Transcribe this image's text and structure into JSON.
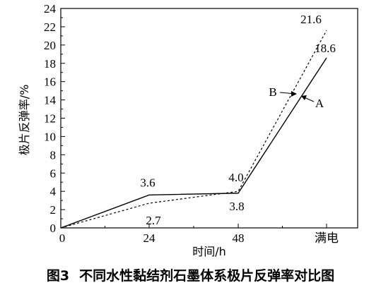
{
  "chart_data": {
    "type": "line",
    "xlabel": "时间/h",
    "ylabel": "极片反弹率/%",
    "categories": [
      "0",
      "24",
      "48",
      "满电"
    ],
    "ylim": [
      0,
      24
    ],
    "yticks": [
      "0",
      "2",
      "4",
      "6",
      "8",
      "10",
      "12",
      "14",
      "16",
      "18",
      "20",
      "22",
      "24"
    ],
    "series": [
      {
        "name": "A",
        "values": [
          0,
          3.6,
          3.8,
          18.6
        ],
        "style": "solid",
        "value_labels": [
          "",
          "3.6",
          "3.8",
          "18.6"
        ]
      },
      {
        "name": "B",
        "values": [
          0,
          2.7,
          4.0,
          21.6
        ],
        "style": "dashed",
        "value_labels": [
          "",
          "2.7",
          "4.0",
          "21.6"
        ]
      }
    ],
    "grid": false,
    "legend": "inline-arrows"
  },
  "caption": {
    "number": "图3",
    "text": "不同水性黏结剂石墨体系极片反弹率对比图"
  }
}
